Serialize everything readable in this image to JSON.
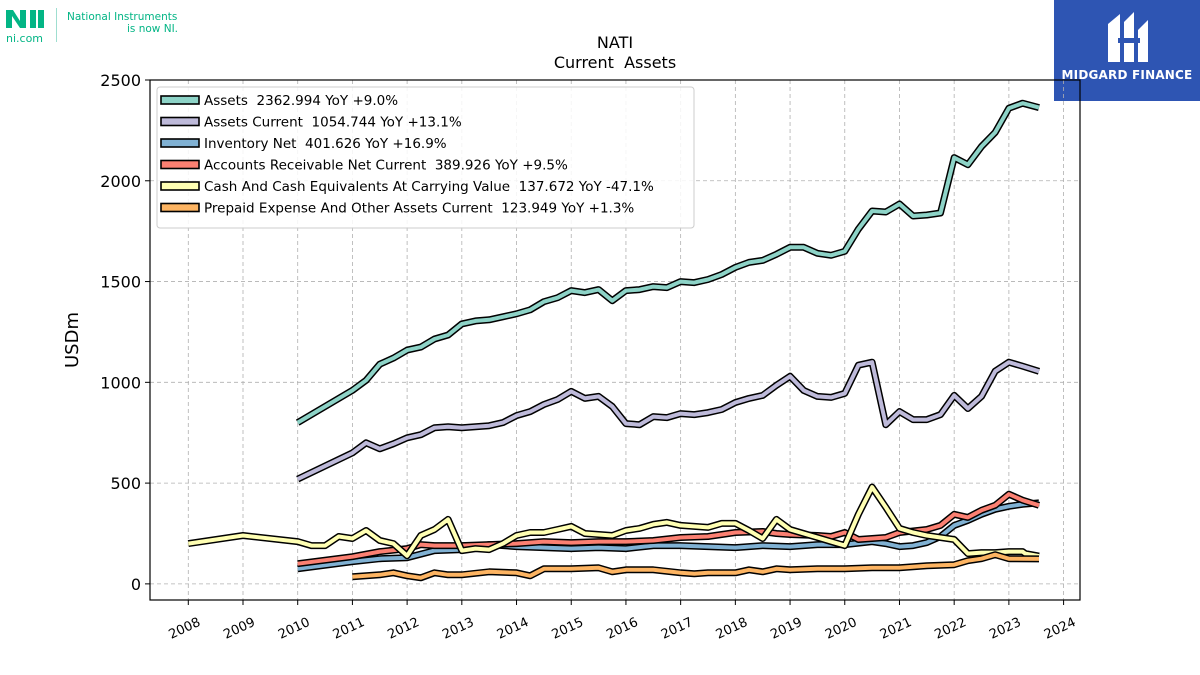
{
  "logo_left": {
    "domain": "ni.com",
    "tagline_line1": "National Instruments",
    "tagline_line2": "is now NI."
  },
  "logo_right": {
    "name": "MIDGARD FINANCE",
    "icon": "midgard-monogram-icon",
    "background": "#2e55b3"
  },
  "chart_data": {
    "type": "line",
    "title": "NATI",
    "subtitle": "Current  Assets",
    "xlabel": "",
    "ylabel": "USDm",
    "xlim": [
      2007.3,
      2024.3
    ],
    "ylim": [
      -80,
      2500
    ],
    "x_ticks": [
      2008,
      2009,
      2010,
      2011,
      2012,
      2013,
      2014,
      2015,
      2016,
      2017,
      2018,
      2019,
      2020,
      2021,
      2022,
      2023,
      2024
    ],
    "x_tick_labels": [
      "2008",
      "2009",
      "2010",
      "2011",
      "2012",
      "2013",
      "2014",
      "2015",
      "2016",
      "2017",
      "2018",
      "2019",
      "2020",
      "2021",
      "2022",
      "2023",
      "2024"
    ],
    "y_ticks": [
      0,
      500,
      1000,
      1500,
      2000,
      2500
    ],
    "y_tick_labels": [
      "0",
      "500",
      "1000",
      "1500",
      "2000",
      "2500"
    ],
    "grid": true,
    "legend_position": "top-left",
    "series": [
      {
        "name": "Assets  2362.994 YoY +9.0%",
        "color": "#8dd3c7",
        "points": [
          [
            2010.0,
            800
          ],
          [
            2011.0,
            960
          ],
          [
            2011.25,
            1010
          ],
          [
            2011.5,
            1090
          ],
          [
            2011.75,
            1120
          ],
          [
            2012.0,
            1160
          ],
          [
            2012.25,
            1175
          ],
          [
            2012.5,
            1215
          ],
          [
            2012.75,
            1235
          ],
          [
            2013.0,
            1290
          ],
          [
            2013.25,
            1305
          ],
          [
            2013.5,
            1310
          ],
          [
            2013.75,
            1325
          ],
          [
            2014.0,
            1340
          ],
          [
            2014.25,
            1360
          ],
          [
            2014.5,
            1400
          ],
          [
            2014.75,
            1420
          ],
          [
            2015.0,
            1455
          ],
          [
            2015.25,
            1445
          ],
          [
            2015.5,
            1460
          ],
          [
            2015.75,
            1405
          ],
          [
            2016.0,
            1455
          ],
          [
            2016.25,
            1460
          ],
          [
            2016.5,
            1475
          ],
          [
            2016.75,
            1470
          ],
          [
            2017.0,
            1500
          ],
          [
            2017.25,
            1495
          ],
          [
            2017.5,
            1510
          ],
          [
            2017.75,
            1535
          ],
          [
            2018.0,
            1570
          ],
          [
            2018.25,
            1595
          ],
          [
            2018.5,
            1605
          ],
          [
            2018.75,
            1635
          ],
          [
            2019.0,
            1670
          ],
          [
            2019.25,
            1670
          ],
          [
            2019.5,
            1640
          ],
          [
            2019.75,
            1630
          ],
          [
            2020.0,
            1650
          ],
          [
            2020.25,
            1760
          ],
          [
            2020.5,
            1850
          ],
          [
            2020.75,
            1845
          ],
          [
            2021.0,
            1885
          ],
          [
            2021.25,
            1825
          ],
          [
            2021.5,
            1830
          ],
          [
            2021.75,
            1840
          ],
          [
            2022.0,
            2115
          ],
          [
            2022.25,
            2080
          ],
          [
            2022.5,
            2170
          ],
          [
            2022.75,
            2240
          ],
          [
            2023.0,
            2360
          ],
          [
            2023.25,
            2385
          ],
          [
            2023.55,
            2362.994
          ]
        ]
      },
      {
        "name": "Assets Current  1054.744 YoY +13.1%",
        "color": "#bebada",
        "points": [
          [
            2010.0,
            520
          ],
          [
            2011.0,
            650
          ],
          [
            2011.25,
            700
          ],
          [
            2011.5,
            670
          ],
          [
            2011.75,
            695
          ],
          [
            2012.0,
            725
          ],
          [
            2012.25,
            740
          ],
          [
            2012.5,
            775
          ],
          [
            2012.75,
            780
          ],
          [
            2013.0,
            775
          ],
          [
            2013.25,
            780
          ],
          [
            2013.5,
            785
          ],
          [
            2013.75,
            800
          ],
          [
            2014.0,
            835
          ],
          [
            2014.25,
            855
          ],
          [
            2014.5,
            890
          ],
          [
            2014.75,
            915
          ],
          [
            2015.0,
            955
          ],
          [
            2015.25,
            920
          ],
          [
            2015.5,
            930
          ],
          [
            2015.75,
            880
          ],
          [
            2016.0,
            795
          ],
          [
            2016.25,
            790
          ],
          [
            2016.5,
            830
          ],
          [
            2016.75,
            825
          ],
          [
            2017.0,
            845
          ],
          [
            2017.25,
            840
          ],
          [
            2017.5,
            850
          ],
          [
            2017.75,
            865
          ],
          [
            2018.0,
            900
          ],
          [
            2018.25,
            920
          ],
          [
            2018.5,
            935
          ],
          [
            2018.75,
            985
          ],
          [
            2019.0,
            1030
          ],
          [
            2019.25,
            960
          ],
          [
            2019.5,
            930
          ],
          [
            2019.75,
            925
          ],
          [
            2020.0,
            945
          ],
          [
            2020.25,
            1085
          ],
          [
            2020.5,
            1100
          ],
          [
            2020.75,
            790
          ],
          [
            2021.0,
            855
          ],
          [
            2021.25,
            815
          ],
          [
            2021.5,
            815
          ],
          [
            2021.75,
            840
          ],
          [
            2022.0,
            935
          ],
          [
            2022.25,
            870
          ],
          [
            2022.5,
            930
          ],
          [
            2022.75,
            1055
          ],
          [
            2023.0,
            1100
          ],
          [
            2023.25,
            1080
          ],
          [
            2023.55,
            1054.744
          ]
        ]
      },
      {
        "name": "Inventory Net  401.626 YoY +16.9%",
        "color": "#80b1d3",
        "points": [
          [
            2010.0,
            75
          ],
          [
            2011.0,
            110
          ],
          [
            2011.5,
            125
          ],
          [
            2012.0,
            130
          ],
          [
            2012.5,
            165
          ],
          [
            2013.0,
            170
          ],
          [
            2013.5,
            195
          ],
          [
            2014.0,
            185
          ],
          [
            2014.5,
            180
          ],
          [
            2015.0,
            175
          ],
          [
            2015.5,
            180
          ],
          [
            2016.0,
            175
          ],
          [
            2016.5,
            190
          ],
          [
            2017.0,
            190
          ],
          [
            2017.5,
            185
          ],
          [
            2018.0,
            180
          ],
          [
            2018.5,
            190
          ],
          [
            2019.0,
            185
          ],
          [
            2019.5,
            195
          ],
          [
            2020.0,
            195
          ],
          [
            2020.5,
            210
          ],
          [
            2020.75,
            200
          ],
          [
            2021.0,
            185
          ],
          [
            2021.25,
            190
          ],
          [
            2021.5,
            205
          ],
          [
            2021.75,
            235
          ],
          [
            2022.0,
            290
          ],
          [
            2022.25,
            315
          ],
          [
            2022.5,
            345
          ],
          [
            2022.75,
            370
          ],
          [
            2023.0,
            385
          ],
          [
            2023.25,
            395
          ],
          [
            2023.55,
            401.626
          ]
        ]
      },
      {
        "name": "Accounts Receivable Net Current  389.926 YoY +9.5%",
        "color": "#fb8072",
        "points": [
          [
            2010.0,
            100
          ],
          [
            2011.0,
            135
          ],
          [
            2011.5,
            160
          ],
          [
            2012.0,
            175
          ],
          [
            2012.25,
            195
          ],
          [
            2012.5,
            190
          ],
          [
            2013.0,
            190
          ],
          [
            2013.5,
            195
          ],
          [
            2014.0,
            200
          ],
          [
            2014.5,
            210
          ],
          [
            2015.0,
            205
          ],
          [
            2015.5,
            210
          ],
          [
            2016.0,
            210
          ],
          [
            2016.5,
            215
          ],
          [
            2017.0,
            230
          ],
          [
            2017.5,
            235
          ],
          [
            2018.0,
            255
          ],
          [
            2018.5,
            260
          ],
          [
            2018.75,
            250
          ],
          [
            2019.0,
            245
          ],
          [
            2019.5,
            240
          ],
          [
            2019.75,
            235
          ],
          [
            2020.0,
            255
          ],
          [
            2020.25,
            220
          ],
          [
            2020.5,
            225
          ],
          [
            2020.75,
            230
          ],
          [
            2021.0,
            255
          ],
          [
            2021.5,
            270
          ],
          [
            2021.75,
            290
          ],
          [
            2022.0,
            345
          ],
          [
            2022.25,
            330
          ],
          [
            2022.5,
            365
          ],
          [
            2022.75,
            390
          ],
          [
            2023.0,
            445
          ],
          [
            2023.25,
            415
          ],
          [
            2023.55,
            389.926
          ]
        ]
      },
      {
        "name": "Cash And Cash Equivalents At Carrying Value  137.672 YoY -47.1%",
        "color": "#ffffb3",
        "points": [
          [
            2008.0,
            200
          ],
          [
            2009.0,
            240
          ],
          [
            2010.0,
            210
          ],
          [
            2010.25,
            190
          ],
          [
            2010.5,
            190
          ],
          [
            2010.75,
            235
          ],
          [
            2011.0,
            225
          ],
          [
            2011.25,
            265
          ],
          [
            2011.5,
            215
          ],
          [
            2011.75,
            200
          ],
          [
            2012.0,
            140
          ],
          [
            2012.25,
            240
          ],
          [
            2012.5,
            270
          ],
          [
            2012.75,
            320
          ],
          [
            2013.0,
            165
          ],
          [
            2013.25,
            175
          ],
          [
            2013.5,
            170
          ],
          [
            2013.75,
            200
          ],
          [
            2014.0,
            240
          ],
          [
            2014.25,
            255
          ],
          [
            2014.5,
            255
          ],
          [
            2014.75,
            270
          ],
          [
            2015.0,
            285
          ],
          [
            2015.25,
            250
          ],
          [
            2015.5,
            245
          ],
          [
            2015.75,
            240
          ],
          [
            2016.0,
            265
          ],
          [
            2016.25,
            275
          ],
          [
            2016.5,
            295
          ],
          [
            2016.75,
            305
          ],
          [
            2017.0,
            290
          ],
          [
            2017.25,
            285
          ],
          [
            2017.5,
            280
          ],
          [
            2017.75,
            300
          ],
          [
            2018.0,
            300
          ],
          [
            2018.25,
            265
          ],
          [
            2018.5,
            225
          ],
          [
            2018.75,
            320
          ],
          [
            2019.0,
            270
          ],
          [
            2019.25,
            250
          ],
          [
            2019.5,
            230
          ],
          [
            2019.75,
            210
          ],
          [
            2020.0,
            190
          ],
          [
            2020.25,
            345
          ],
          [
            2020.5,
            480
          ],
          [
            2020.75,
            380
          ],
          [
            2021.0,
            275
          ],
          [
            2021.25,
            255
          ],
          [
            2021.5,
            240
          ],
          [
            2021.75,
            230
          ],
          [
            2022.0,
            220
          ],
          [
            2022.25,
            150
          ],
          [
            2022.5,
            155
          ],
          [
            2022.75,
            155
          ],
          [
            2023.0,
            160
          ],
          [
            2023.25,
            160
          ],
          [
            2023.3,
            150
          ],
          [
            2023.55,
            137.672
          ]
        ]
      },
      {
        "name": "Prepaid Expense And Other Assets Current  123.949 YoY +1.3%",
        "color": "#fdb462",
        "points": [
          [
            2011.0,
            35
          ],
          [
            2011.5,
            45
          ],
          [
            2011.75,
            55
          ],
          [
            2012.0,
            40
          ],
          [
            2012.25,
            30
          ],
          [
            2012.5,
            55
          ],
          [
            2012.75,
            45
          ],
          [
            2013.0,
            45
          ],
          [
            2013.5,
            60
          ],
          [
            2014.0,
            55
          ],
          [
            2014.25,
            40
          ],
          [
            2014.5,
            75
          ],
          [
            2015.0,
            75
          ],
          [
            2015.5,
            80
          ],
          [
            2015.75,
            60
          ],
          [
            2016.0,
            70
          ],
          [
            2016.5,
            70
          ],
          [
            2017.0,
            55
          ],
          [
            2017.25,
            50
          ],
          [
            2017.5,
            55
          ],
          [
            2018.0,
            55
          ],
          [
            2018.25,
            70
          ],
          [
            2018.5,
            60
          ],
          [
            2018.75,
            75
          ],
          [
            2019.0,
            70
          ],
          [
            2019.5,
            75
          ],
          [
            2020.0,
            75
          ],
          [
            2020.5,
            80
          ],
          [
            2021.0,
            80
          ],
          [
            2021.5,
            90
          ],
          [
            2022.0,
            95
          ],
          [
            2022.25,
            115
          ],
          [
            2022.5,
            125
          ],
          [
            2022.75,
            145
          ],
          [
            2023.0,
            125
          ],
          [
            2023.55,
            123.949
          ]
        ]
      }
    ]
  }
}
